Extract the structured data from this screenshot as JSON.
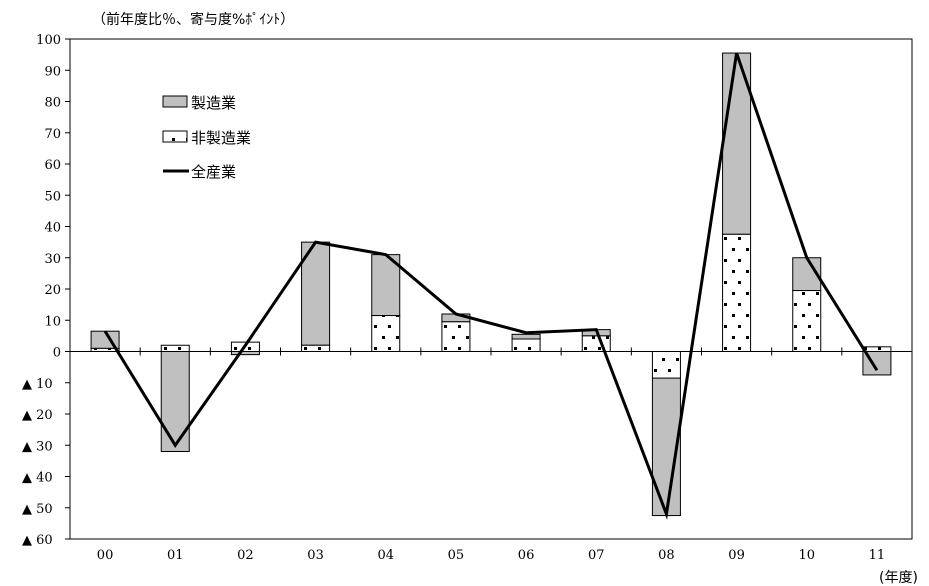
{
  "chart_data": {
    "type": "bar",
    "units_note": "（前年度比％、寄与度%ﾎﾟｲﾝﾄ）",
    "xlabel": "(年度)",
    "categories": [
      "00",
      "01",
      "02",
      "03",
      "04",
      "05",
      "06",
      "07",
      "08",
      "09",
      "10",
      "11"
    ],
    "ylim": [
      -60,
      100
    ],
    "yticks": [
      100,
      90,
      80,
      70,
      60,
      50,
      40,
      30,
      20,
      10,
      0,
      -10,
      -20,
      -30,
      -40,
      -50,
      -60
    ],
    "ytick_labels": [
      "100",
      "90",
      "80",
      "70",
      "60",
      "50",
      "40",
      "30",
      "20",
      "10",
      "0",
      "▲ 10",
      "▲ 20",
      "▲ 30",
      "▲ 40",
      "▲ 50",
      "▲ 60"
    ],
    "grid": false,
    "stacked": true,
    "legend_position": "top-left",
    "series": [
      {
        "name": "製造業",
        "kind": "bar",
        "color": "#c0c0c0",
        "values": [
          5.5,
          -32,
          -1,
          33,
          19.5,
          2.5,
          1.5,
          2,
          -44,
          58,
          10.5,
          -7.5
        ]
      },
      {
        "name": "非製造業",
        "kind": "bar",
        "color": "#ffffff",
        "pattern": "dots",
        "values": [
          1,
          2,
          3,
          2,
          11.5,
          9.5,
          4,
          5,
          -8.5,
          37.5,
          19.5,
          1.5
        ]
      },
      {
        "name": "全産業",
        "kind": "line",
        "color": "#000000",
        "values": [
          6.5,
          -30,
          2,
          35,
          31,
          12,
          6,
          7,
          -52,
          95.5,
          30,
          -6
        ]
      }
    ]
  }
}
